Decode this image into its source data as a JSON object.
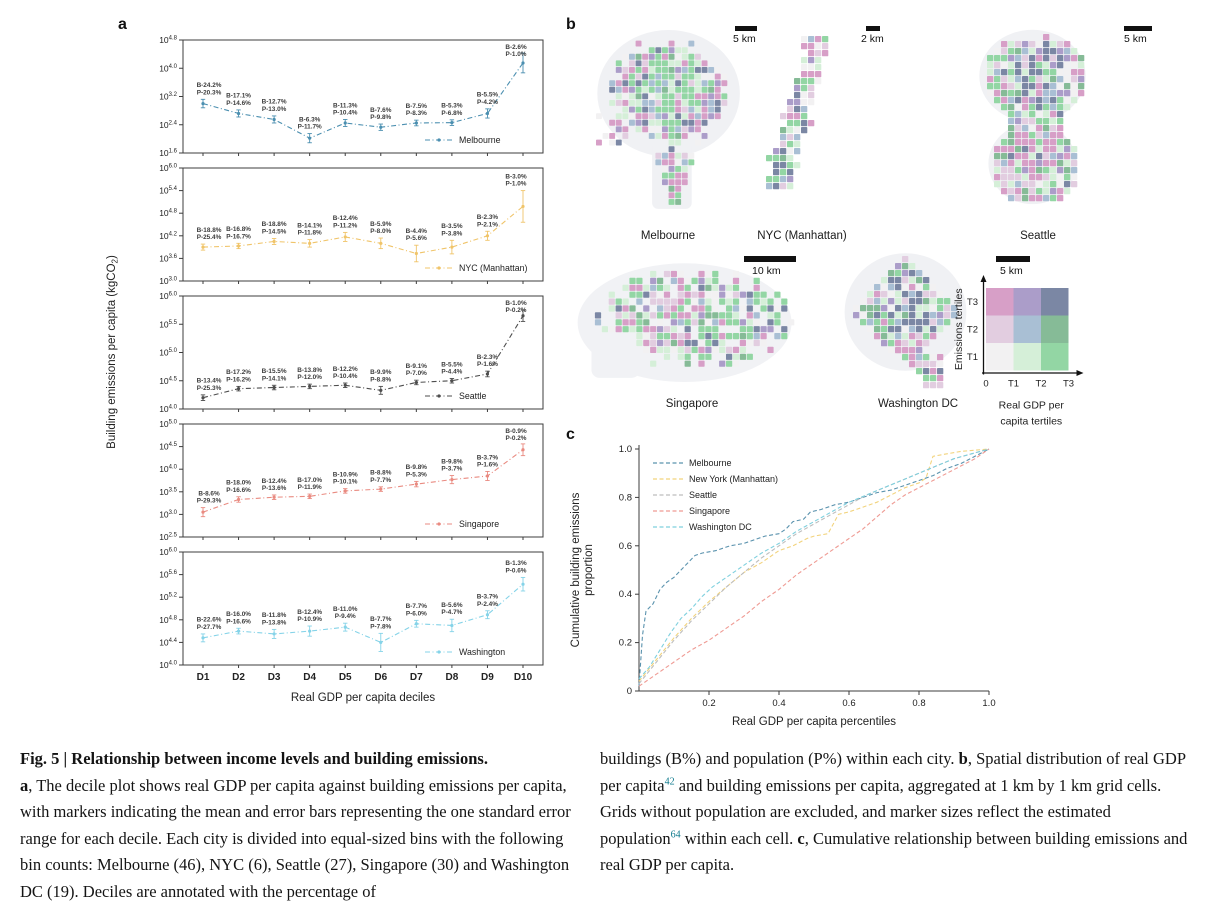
{
  "panel_a": {
    "label": "a",
    "xlabel": "Real GDP per capita deciles",
    "ylabel_pre": "Building emissions per capita (kgCO",
    "ylabel_sub": "2",
    "ylabel_post": ")"
  },
  "panel_b": {
    "label": "b",
    "maps": [
      {
        "key": "melbourne",
        "name": "Melbourne",
        "scale": "5 km"
      },
      {
        "key": "nyc",
        "name": "NYC (Manhattan)",
        "scale": "2 km"
      },
      {
        "key": "seattle",
        "name": "Seattle",
        "scale": "5 km"
      },
      {
        "key": "singapore",
        "name": "Singapore",
        "scale": "10 km"
      },
      {
        "key": "washington",
        "name": "Washington DC",
        "scale": "5 km"
      }
    ],
    "legend": {
      "palette": [
        [
          "#f2f1f2",
          "#d5efd8",
          "#93d6a4"
        ],
        [
          "#e2cde0",
          "#a9bfd4",
          "#86bb97"
        ],
        [
          "#d79fc7",
          "#ab9dc9",
          "#7b87a4"
        ]
      ],
      "row_labels_top_to_bottom": [
        "T3",
        "T2",
        "T1"
      ],
      "col_labels": [
        "0",
        "T1",
        "T2",
        "T3"
      ],
      "y_title": "Emissions tertiles",
      "x_title_line1": "Real GDP per",
      "x_title_line2": "capita tertiles"
    }
  },
  "panel_c": {
    "label": "c",
    "xlabel": "Real GDP per capita percentiles",
    "ylabel_line1": "Cumulative building emissions",
    "ylabel_line2": "proportion",
    "xticks": [
      "0.2",
      "0.4",
      "0.6",
      "0.8",
      "1.0"
    ],
    "yticks": [
      "0",
      "0.2",
      "0.4",
      "0.6",
      "0.8",
      "1.0"
    ]
  },
  "chart_data": {
    "decile_charts": {
      "type": "line",
      "log_scale": true,
      "categories": [
        "D1",
        "D2",
        "D3",
        "D4",
        "D5",
        "D6",
        "D7",
        "D8",
        "D9",
        "D10"
      ],
      "xlabel": "Real GDP per capita deciles",
      "ylabel": "Building emissions per capita (kgCO2)",
      "series": [
        {
          "name": "Melbourne",
          "color": "#4b8fb0",
          "ylim": [
            1.6,
            4.8
          ],
          "yticks": [
            4.8,
            4.0,
            3.2,
            2.4,
            1.6
          ],
          "log10_means": [
            3.0,
            2.72,
            2.55,
            2.02,
            2.45,
            2.33,
            2.45,
            2.46,
            2.72,
            4.15
          ],
          "log10_errors": [
            0.12,
            0.1,
            0.1,
            0.13,
            0.1,
            0.09,
            0.08,
            0.08,
            0.13,
            0.28
          ],
          "building_pct": [
            "B-24.2%",
            "B-17.1%",
            "B-12.7%",
            "B-6.3%",
            "B-11.3%",
            "B-7.6%",
            "B-7.5%",
            "B-5.3%",
            "B-5.5%",
            "B-2.6%"
          ],
          "population_pct": [
            "P-20.3%",
            "P-14.6%",
            "P-13.0%",
            "P-11.7%",
            "P-10.4%",
            "P-9.8%",
            "P-8.3%",
            "P-6.8%",
            "P-4.2%",
            "P-1.0%"
          ]
        },
        {
          "name": "NYC (Manhattan)",
          "color": "#f0c469",
          "ylim": [
            3.0,
            6.0
          ],
          "yticks": [
            6.0,
            5.4,
            4.8,
            4.2,
            3.6,
            3.0
          ],
          "log10_means": [
            3.9,
            3.93,
            4.05,
            4.0,
            4.17,
            4.0,
            3.73,
            3.9,
            4.2,
            4.98
          ],
          "log10_errors": [
            0.08,
            0.07,
            0.08,
            0.1,
            0.12,
            0.14,
            0.22,
            0.18,
            0.12,
            0.42
          ],
          "building_pct": [
            "B-18.8%",
            "B-16.8%",
            "B-18.8%",
            "B-14.1%",
            "B-12.4%",
            "B-5.9%",
            "B-4.4%",
            "B-3.5%",
            "B-2.3%",
            "B-3.0%"
          ],
          "population_pct": [
            "P-25.4%",
            "P-16.7%",
            "P-14.5%",
            "P-11.8%",
            "P-11.2%",
            "P-8.0%",
            "P-5.6%",
            "P-3.8%",
            "P-2.1%",
            "P-1.0%"
          ]
        },
        {
          "name": "Seattle",
          "color": "#4d4d4d",
          "ylim": [
            4.0,
            6.0
          ],
          "yticks": [
            6.0,
            5.5,
            5.0,
            4.5,
            4.0
          ],
          "log10_means": [
            4.2,
            4.36,
            4.38,
            4.4,
            4.42,
            4.33,
            4.47,
            4.5,
            4.62,
            5.65
          ],
          "log10_errors": [
            0.05,
            0.04,
            0.04,
            0.04,
            0.04,
            0.07,
            0.04,
            0.04,
            0.05,
            0.1
          ],
          "building_pct": [
            "B-13.4%",
            "B-17.2%",
            "B-15.5%",
            "B-13.8%",
            "B-12.2%",
            "B-9.9%",
            "B-9.1%",
            "B-5.5%",
            "B-2.3%",
            "B-1.0%"
          ],
          "population_pct": [
            "P-25.3%",
            "P-16.2%",
            "P-14.1%",
            "P-12.0%",
            "P-10.4%",
            "P-8.8%",
            "P-7.0%",
            "P-4.4%",
            "P-1.6%",
            "P-0.2%"
          ]
        },
        {
          "name": "Singapore",
          "color": "#e98a80",
          "ylim": [
            2.5,
            5.0
          ],
          "yticks": [
            5.0,
            4.5,
            4.0,
            3.5,
            3.0,
            2.5
          ],
          "log10_means": [
            3.05,
            3.33,
            3.38,
            3.4,
            3.52,
            3.56,
            3.67,
            3.77,
            3.85,
            4.43
          ],
          "log10_errors": [
            0.1,
            0.06,
            0.05,
            0.05,
            0.05,
            0.05,
            0.06,
            0.09,
            0.1,
            0.13
          ],
          "building_pct": [
            "B-8.6%",
            "B-18.0%",
            "B-12.4%",
            "B-17.0%",
            "B-10.9%",
            "B-8.8%",
            "B-9.8%",
            "B-9.8%",
            "B-3.7%",
            "B-0.9%"
          ],
          "population_pct": [
            "P-29.3%",
            "P-16.6%",
            "P-13.6%",
            "P-11.9%",
            "P-10.1%",
            "P-7.7%",
            "P-5.3%",
            "P-3.7%",
            "P-1.6%",
            "P-0.2%"
          ]
        },
        {
          "name": "Washington",
          "color": "#85d3e8",
          "ylim": [
            4.0,
            6.0
          ],
          "yticks": [
            6.0,
            5.6,
            5.2,
            4.8,
            4.4,
            4.0
          ],
          "log10_means": [
            4.48,
            4.6,
            4.55,
            4.6,
            4.67,
            4.4,
            4.73,
            4.7,
            4.89,
            5.43
          ],
          "log10_errors": [
            0.07,
            0.05,
            0.08,
            0.09,
            0.07,
            0.16,
            0.06,
            0.11,
            0.07,
            0.12
          ],
          "building_pct": [
            "B-22.6%",
            "B-16.0%",
            "B-11.8%",
            "B-12.4%",
            "B-11.0%",
            "B-7.7%",
            "B-7.7%",
            "B-5.6%",
            "B-3.7%",
            "B-1.3%"
          ],
          "population_pct": [
            "P-27.7%",
            "P-16.6%",
            "P-13.8%",
            "P-10.9%",
            "P-9.4%",
            "P-7.8%",
            "P-6.0%",
            "P-4.7%",
            "P-2.4%",
            "P-0.6%"
          ]
        }
      ]
    },
    "cumulative_chart": {
      "type": "line",
      "xlabel": "Real GDP per capita percentiles",
      "ylabel": "Cumulative building emissions proportion",
      "xlim": [
        0,
        1
      ],
      "ylim": [
        0,
        1
      ],
      "legend_position": "top-left",
      "series": [
        {
          "name": "Melbourne",
          "color": "#5b93ae",
          "points": [
            [
              0,
              0.02
            ],
            [
              0.01,
              0.23
            ],
            [
              0.02,
              0.33
            ],
            [
              0.04,
              0.36
            ],
            [
              0.06,
              0.42
            ],
            [
              0.08,
              0.45
            ],
            [
              0.1,
              0.47
            ],
            [
              0.12,
              0.5
            ],
            [
              0.14,
              0.53
            ],
            [
              0.16,
              0.56
            ],
            [
              0.18,
              0.57
            ],
            [
              0.22,
              0.58
            ],
            [
              0.26,
              0.6
            ],
            [
              0.3,
              0.61
            ],
            [
              0.34,
              0.63
            ],
            [
              0.36,
              0.64
            ],
            [
              0.4,
              0.65
            ],
            [
              0.42,
              0.67
            ],
            [
              0.44,
              0.7
            ],
            [
              0.47,
              0.71
            ],
            [
              0.49,
              0.74
            ],
            [
              0.52,
              0.75
            ],
            [
              0.56,
              0.77
            ],
            [
              0.6,
              0.78
            ],
            [
              0.64,
              0.8
            ],
            [
              0.68,
              0.82
            ],
            [
              0.72,
              0.83
            ],
            [
              0.76,
              0.85
            ],
            [
              0.8,
              0.87
            ],
            [
              0.84,
              0.89
            ],
            [
              0.88,
              0.92
            ],
            [
              0.92,
              0.94
            ],
            [
              0.96,
              0.97
            ],
            [
              1,
              1
            ]
          ]
        },
        {
          "name": "New York (Manhattan)",
          "color": "#f2d37c",
          "points": [
            [
              0,
              0.04
            ],
            [
              0.05,
              0.13
            ],
            [
              0.1,
              0.22
            ],
            [
              0.15,
              0.3
            ],
            [
              0.2,
              0.37
            ],
            [
              0.25,
              0.43
            ],
            [
              0.3,
              0.49
            ],
            [
              0.35,
              0.53
            ],
            [
              0.4,
              0.58
            ],
            [
              0.44,
              0.6
            ],
            [
              0.48,
              0.63
            ],
            [
              0.5,
              0.64
            ],
            [
              0.54,
              0.65
            ],
            [
              0.57,
              0.73
            ],
            [
              0.6,
              0.74
            ],
            [
              0.64,
              0.76
            ],
            [
              0.68,
              0.78
            ],
            [
              0.72,
              0.81
            ],
            [
              0.76,
              0.84
            ],
            [
              0.8,
              0.86
            ],
            [
              0.82,
              0.88
            ],
            [
              0.84,
              0.97
            ],
            [
              0.88,
              0.98
            ],
            [
              0.92,
              0.99
            ],
            [
              1,
              1
            ]
          ]
        },
        {
          "name": "Seattle",
          "color": "#bdbdbd",
          "points": [
            [
              0,
              0.03
            ],
            [
              0.05,
              0.12
            ],
            [
              0.1,
              0.21
            ],
            [
              0.15,
              0.29
            ],
            [
              0.2,
              0.36
            ],
            [
              0.25,
              0.43
            ],
            [
              0.3,
              0.49
            ],
            [
              0.35,
              0.55
            ],
            [
              0.4,
              0.6
            ],
            [
              0.45,
              0.65
            ],
            [
              0.5,
              0.69
            ],
            [
              0.55,
              0.73
            ],
            [
              0.6,
              0.77
            ],
            [
              0.65,
              0.81
            ],
            [
              0.7,
              0.84
            ],
            [
              0.75,
              0.87
            ],
            [
              0.8,
              0.9
            ],
            [
              0.85,
              0.93
            ],
            [
              0.9,
              0.96
            ],
            [
              0.95,
              0.98
            ],
            [
              1,
              1
            ]
          ]
        },
        {
          "name": "Singapore",
          "color": "#ef9b94",
          "points": [
            [
              0,
              0.02
            ],
            [
              0.05,
              0.07
            ],
            [
              0.1,
              0.12
            ],
            [
              0.15,
              0.17
            ],
            [
              0.2,
              0.21
            ],
            [
              0.25,
              0.26
            ],
            [
              0.3,
              0.31
            ],
            [
              0.35,
              0.37
            ],
            [
              0.4,
              0.42
            ],
            [
              0.45,
              0.48
            ],
            [
              0.5,
              0.53
            ],
            [
              0.55,
              0.58
            ],
            [
              0.6,
              0.63
            ],
            [
              0.64,
              0.67
            ],
            [
              0.68,
              0.72
            ],
            [
              0.72,
              0.77
            ],
            [
              0.76,
              0.81
            ],
            [
              0.8,
              0.84
            ],
            [
              0.84,
              0.87
            ],
            [
              0.88,
              0.9
            ],
            [
              0.92,
              0.93
            ],
            [
              0.96,
              0.96
            ],
            [
              1,
              1
            ]
          ]
        },
        {
          "name": "Washington DC",
          "color": "#7fd0de",
          "points": [
            [
              0,
              0.05
            ],
            [
              0.03,
              0.1
            ],
            [
              0.06,
              0.17
            ],
            [
              0.09,
              0.24
            ],
            [
              0.12,
              0.3
            ],
            [
              0.15,
              0.34
            ],
            [
              0.18,
              0.39
            ],
            [
              0.21,
              0.43
            ],
            [
              0.25,
              0.47
            ],
            [
              0.3,
              0.52
            ],
            [
              0.35,
              0.57
            ],
            [
              0.4,
              0.61
            ],
            [
              0.45,
              0.66
            ],
            [
              0.5,
              0.7
            ],
            [
              0.55,
              0.74
            ],
            [
              0.6,
              0.78
            ],
            [
              0.65,
              0.81
            ],
            [
              0.7,
              0.84
            ],
            [
              0.75,
              0.87
            ],
            [
              0.8,
              0.9
            ],
            [
              0.85,
              0.93
            ],
            [
              0.9,
              0.96
            ],
            [
              0.95,
              0.98
            ],
            [
              1,
              1
            ]
          ]
        }
      ]
    }
  },
  "caption": {
    "left": {
      "heading": "Fig. 5 | Relationship between income levels and building emissions.",
      "body": [
        {
          "t": "a",
          "b": true
        },
        {
          "t": ", The decile plot shows real GDP per capita against building emissions per capita, with markers indicating the mean and error bars representing the one standard error range for each decile. Each city is divided into equal-sized bins with the following bin counts: Melbourne (46), NYC (6), Seattle (27), Singapore (30) and Washington DC (19). Deciles are annotated with the percentage of"
        }
      ]
    },
    "right": {
      "body": [
        {
          "t": "buildings (B%) and population (P%) within each city. "
        },
        {
          "t": "b",
          "b": true
        },
        {
          "t": ", Spatial distribution of real GDP per capita"
        },
        {
          "t": "42",
          "sup": true
        },
        {
          "t": " and building emissions per capita, aggregated at 1 km by 1 km grid cells. Grids without population are excluded, and marker sizes reflect the estimated population"
        },
        {
          "t": "64",
          "sup": true
        },
        {
          "t": " within each cell. "
        },
        {
          "t": "c",
          "b": true
        },
        {
          "t": ", Cumulative relationship between building emissions and real GDP per capita."
        }
      ]
    }
  }
}
